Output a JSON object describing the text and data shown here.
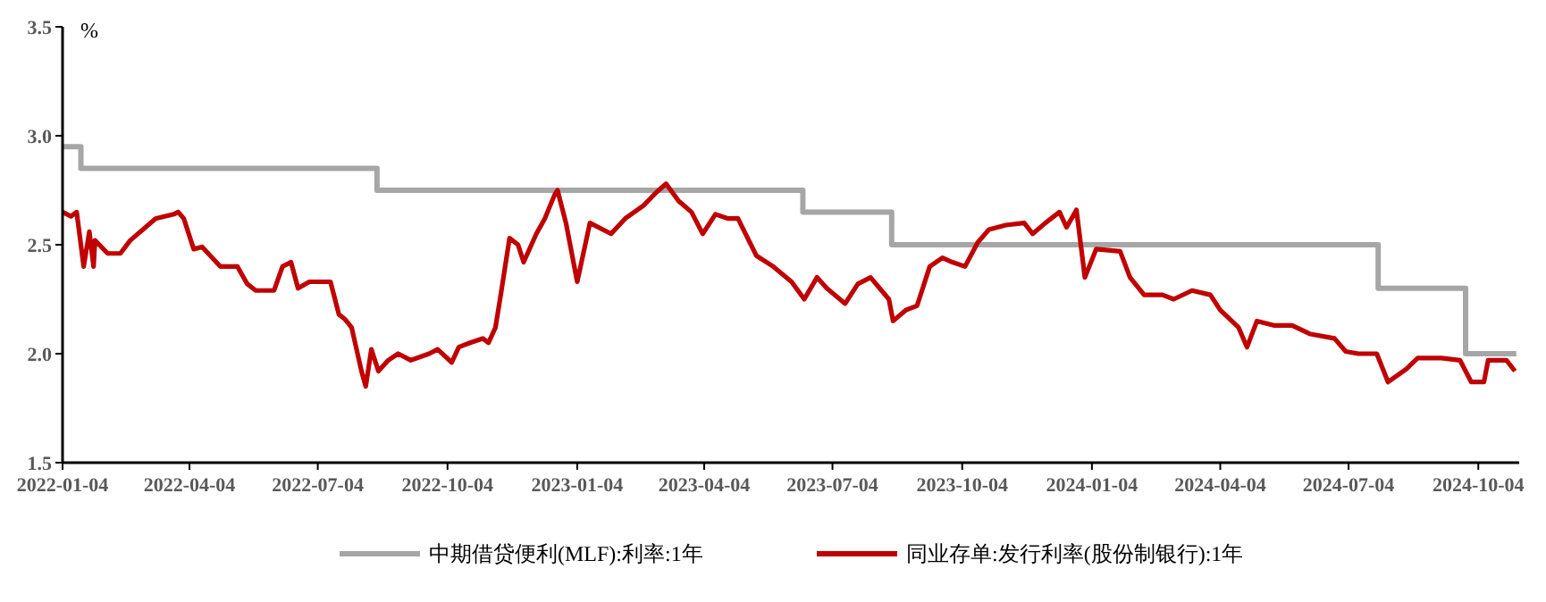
{
  "chart_data": {
    "type": "line",
    "ylabel": "%",
    "xlim": [
      "2022-01-04",
      "2024-11-02"
    ],
    "ylim": [
      1.5,
      3.5
    ],
    "yticks": [
      1.5,
      {
        "value": 2,
        "label": "2.0"
      },
      2.5,
      {
        "value": 3,
        "label": "3.0"
      },
      3.5
    ],
    "xticks": [
      "2022-01-04",
      "2022-04-04",
      "2022-07-04",
      "2022-10-04",
      "2023-01-04",
      "2023-04-04",
      "2023-07-04",
      "2023-10-04",
      "2024-01-04",
      "2024-04-04",
      "2024-07-04",
      "2024-10-04"
    ],
    "grid": false,
    "legend": "bottom",
    "marker": "none",
    "line_style": "solid",
    "series": [
      {
        "name": "中期借贷便利(MLF):利率:1年",
        "type": "step",
        "color": "#a6a6a6",
        "x": [
          "2022-01-04",
          "2022-01-17",
          "2022-08-15",
          "2023-06-13",
          "2023-08-15",
          "2024-07-25",
          "2024-09-25",
          "2024-10-31"
        ],
        "values": [
          2.95,
          2.85,
          2.75,
          2.65,
          2.5,
          2.3,
          2.0,
          2.0
        ]
      },
      {
        "name": "同业存单:发行利率(股份制银行):1年",
        "color": "#c00000",
        "x": [
          "2022-01-04",
          "2022-01-10",
          "2022-01-14",
          "2022-01-19",
          "2022-01-23",
          "2022-01-26",
          "2022-01-27",
          "2022-02-05",
          "2022-02-14",
          "2022-02-21",
          "2022-03-02",
          "2022-03-11",
          "2022-03-24",
          "2022-03-27",
          "2022-03-31",
          "2022-04-07",
          "2022-04-13",
          "2022-04-26",
          "2022-05-08",
          "2022-05-15",
          "2022-05-21",
          "2022-06-03",
          "2022-06-09",
          "2022-06-15",
          "2022-06-20",
          "2022-06-28",
          "2022-07-13",
          "2022-07-19",
          "2022-07-23",
          "2022-07-28",
          "2022-08-04",
          "2022-08-07",
          "2022-08-11",
          "2022-08-16",
          "2022-08-23",
          "2022-08-30",
          "2022-09-08",
          "2022-09-21",
          "2022-09-27",
          "2022-10-07",
          "2022-10-12",
          "2022-10-20",
          "2022-10-29",
          "2022-11-02",
          "2022-11-07",
          "2022-11-11",
          "2022-11-17",
          "2022-11-23",
          "2022-11-27",
          "2022-12-06",
          "2022-12-12",
          "2022-12-19",
          "2022-12-21",
          "2022-12-27",
          "2023-01-04",
          "2023-01-13",
          "2023-01-28",
          "2023-02-07",
          "2023-02-20",
          "2023-03-01",
          "2023-03-08",
          "2023-03-17",
          "2023-03-26",
          "2023-04-03",
          "2023-04-12",
          "2023-04-21",
          "2023-04-28",
          "2023-05-11",
          "2023-05-23",
          "2023-06-05",
          "2023-06-14",
          "2023-06-23",
          "2023-06-30",
          "2023-07-13",
          "2023-07-22",
          "2023-07-31",
          "2023-08-13",
          "2023-08-16",
          "2023-08-25",
          "2023-09-02",
          "2023-09-11",
          "2023-09-20",
          "2023-09-27",
          "2023-10-06",
          "2023-10-15",
          "2023-10-23",
          "2023-11-04",
          "2023-11-17",
          "2023-11-23",
          "2023-12-02",
          "2023-12-12",
          "2023-12-17",
          "2023-12-24",
          "2023-12-30",
          "2024-01-07",
          "2024-01-24",
          "2024-01-31",
          "2024-02-10",
          "2024-02-23",
          "2024-03-02",
          "2024-03-15",
          "2024-03-28",
          "2024-04-04",
          "2024-04-17",
          "2024-04-23",
          "2024-04-30",
          "2024-05-12",
          "2024-05-25",
          "2024-06-07",
          "2024-06-24",
          "2024-07-02",
          "2024-07-11",
          "2024-07-24",
          "2024-08-01",
          "2024-08-14",
          "2024-08-22",
          "2024-09-08",
          "2024-09-21",
          "2024-09-29",
          "2024-10-08",
          "2024-10-11",
          "2024-10-24",
          "2024-10-30"
        ],
        "values": [
          2.65,
          2.63,
          2.65,
          2.4,
          2.56,
          2.4,
          2.52,
          2.46,
          2.46,
          2.52,
          2.57,
          2.62,
          2.64,
          2.65,
          2.62,
          2.48,
          2.49,
          2.4,
          2.4,
          2.32,
          2.29,
          2.29,
          2.4,
          2.42,
          2.3,
          2.33,
          2.33,
          2.18,
          2.16,
          2.12,
          1.92,
          1.85,
          2.02,
          1.92,
          1.97,
          2.0,
          1.97,
          2.0,
          2.02,
          1.96,
          2.03,
          2.05,
          2.07,
          2.05,
          2.12,
          2.28,
          2.53,
          2.5,
          2.42,
          2.55,
          2.62,
          2.73,
          2.75,
          2.6,
          2.33,
          2.6,
          2.55,
          2.62,
          2.68,
          2.74,
          2.78,
          2.7,
          2.65,
          2.55,
          2.64,
          2.62,
          2.62,
          2.45,
          2.4,
          2.33,
          2.25,
          2.35,
          2.3,
          2.23,
          2.32,
          2.35,
          2.25,
          2.15,
          2.2,
          2.22,
          2.4,
          2.44,
          2.42,
          2.4,
          2.51,
          2.57,
          2.59,
          2.6,
          2.55,
          2.6,
          2.65,
          2.58,
          2.66,
          2.35,
          2.48,
          2.47,
          2.35,
          2.27,
          2.27,
          2.25,
          2.29,
          2.27,
          2.2,
          2.12,
          2.03,
          2.15,
          2.13,
          2.13,
          2.09,
          2.07,
          2.01,
          2.0,
          2.0,
          1.87,
          1.93,
          1.98,
          1.98,
          1.97,
          1.87,
          1.87,
          1.97,
          1.97,
          1.92
        ]
      }
    ]
  }
}
